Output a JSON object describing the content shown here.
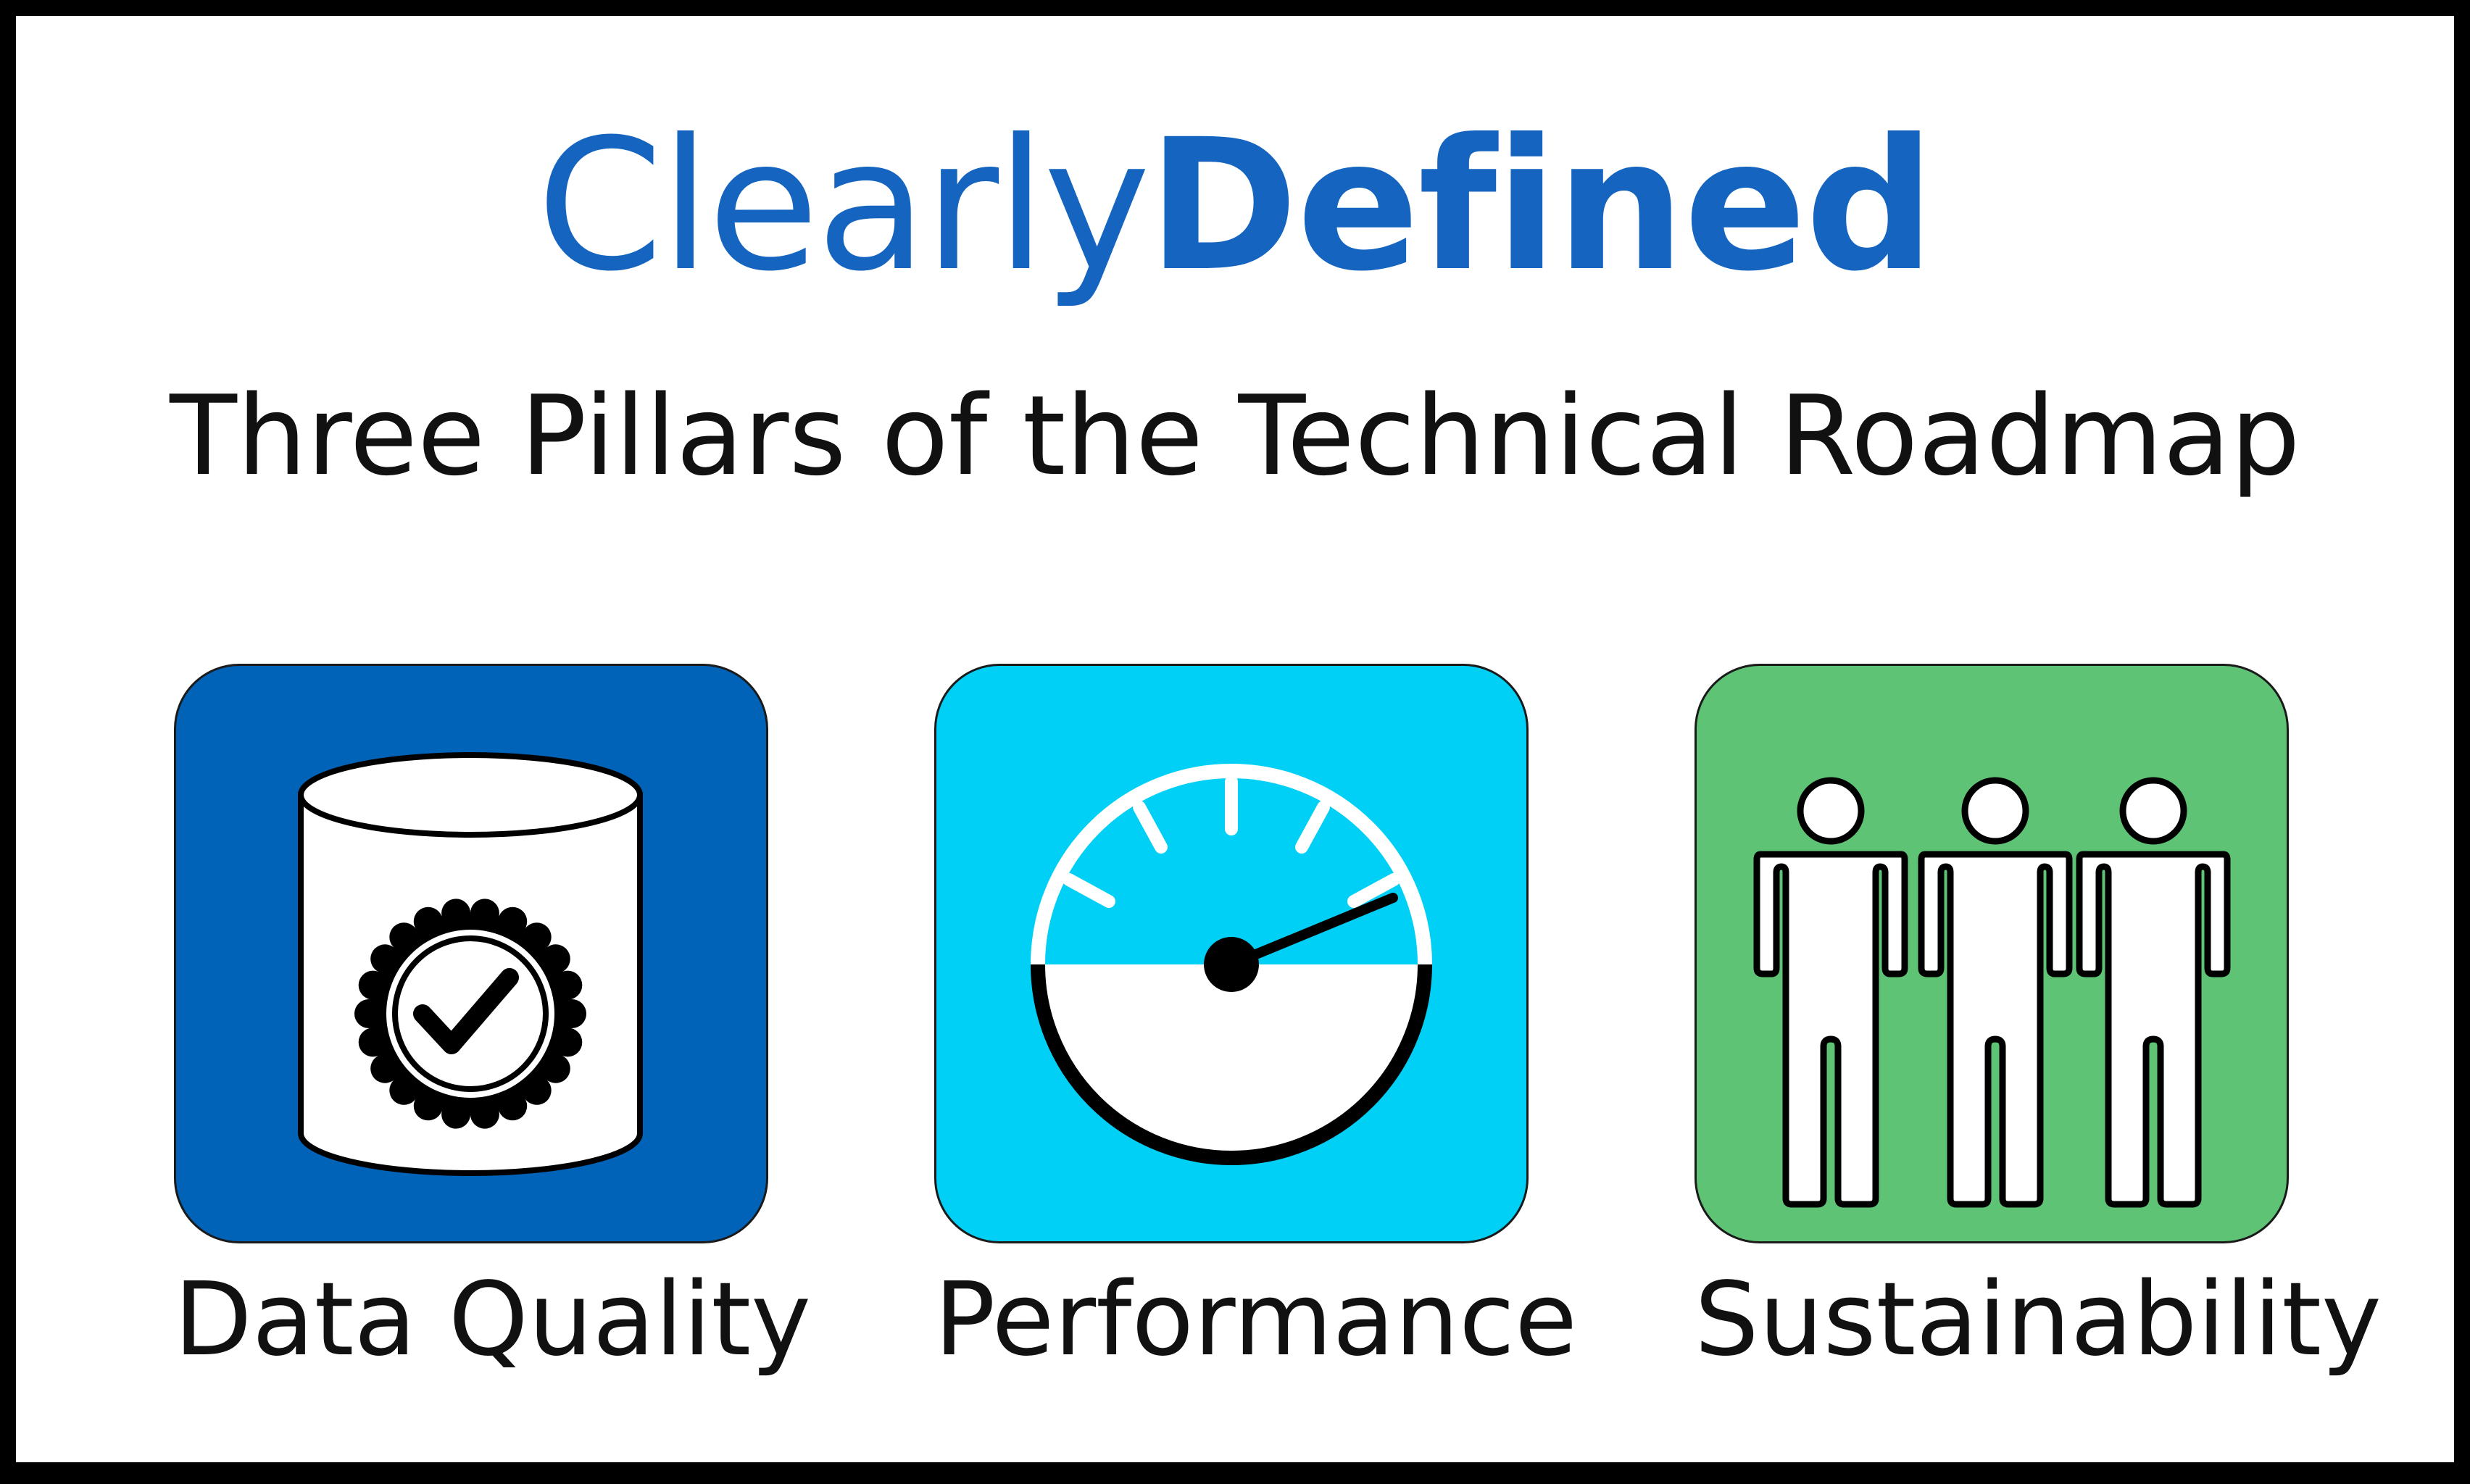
{
  "logo": {
    "part1": "Clearly",
    "part2": "Defined",
    "color": "#1565c0"
  },
  "subtitle": "Three Pillars of the Technical Roadmap",
  "pillars": [
    {
      "label": "Data Quality",
      "color": "#0063b8",
      "icon": "database-check-icon"
    },
    {
      "label": "Performance",
      "color": "#00d0f5",
      "icon": "speedometer-icon"
    },
    {
      "label": "Sustainability",
      "color": "#5ec374",
      "icon": "people-group-icon"
    }
  ]
}
